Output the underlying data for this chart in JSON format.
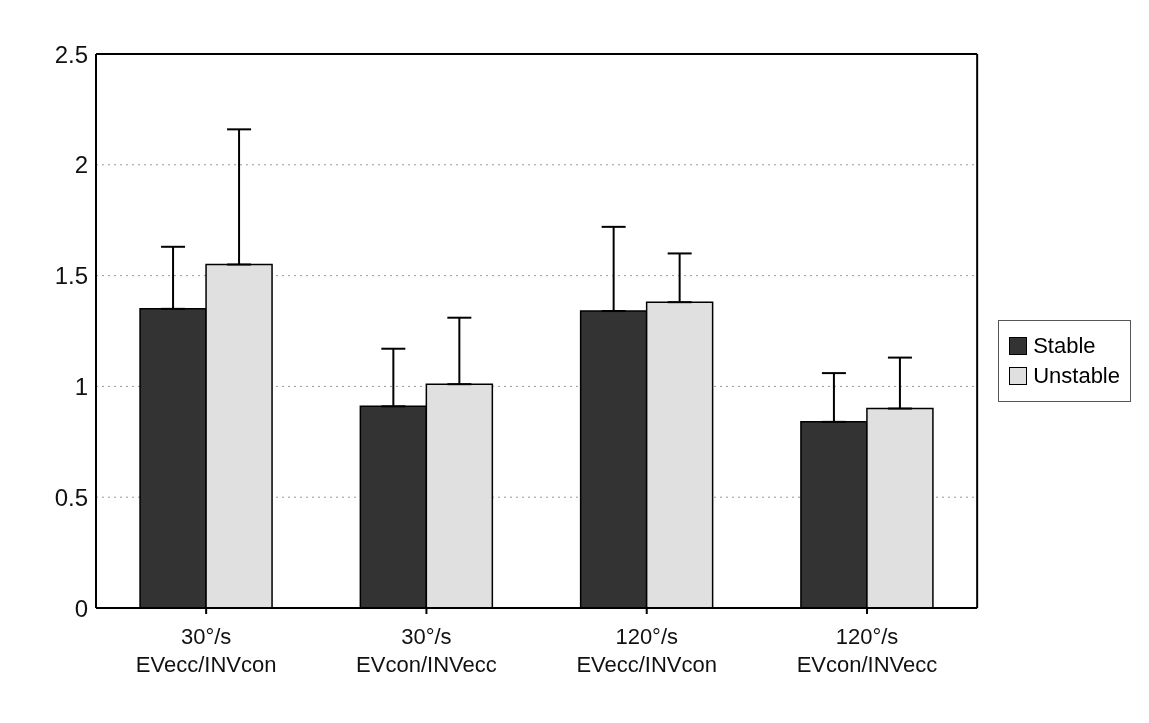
{
  "chart_data": {
    "type": "bar",
    "categories": [
      "30°/s EVecc/INVcon",
      "30°/s EVcon/INVecc",
      "120°/s EVecc/INVcon",
      "120°/s EVcon/INVecc"
    ],
    "series": [
      {
        "name": "Stable",
        "color": "#333333",
        "values": [
          1.35,
          0.91,
          1.34,
          0.84
        ],
        "errors": [
          0.28,
          0.26,
          0.38,
          0.22
        ]
      },
      {
        "name": "Unstable",
        "color": "#e0e0e0",
        "values": [
          1.55,
          1.01,
          1.38,
          0.9
        ],
        "errors": [
          0.61,
          0.3,
          0.22,
          0.23
        ]
      }
    ],
    "ylim": [
      0,
      2.5
    ],
    "yticks": [
      0,
      0.5,
      1,
      1.5,
      2,
      2.5
    ],
    "grid": "y",
    "legend": "right"
  }
}
